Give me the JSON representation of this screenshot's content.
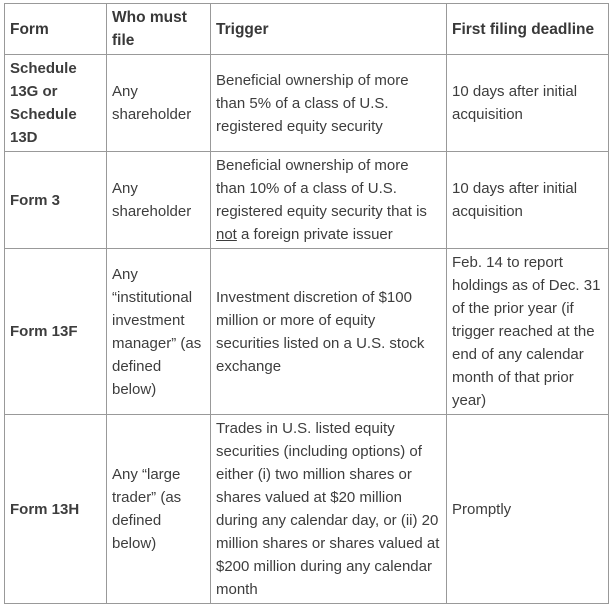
{
  "table": {
    "colors": {
      "border": "#999999",
      "text": "#3d3d3d",
      "background": "#ffffff"
    },
    "headers": {
      "form": "Form",
      "who": "Who must file",
      "trigger": "Trigger",
      "deadline": "First filing deadline"
    },
    "rows": [
      {
        "form": "Schedule 13G or Schedule 13D",
        "who": "Any shareholder",
        "trigger": "Beneficial ownership of more than 5% of a class of U.S. registered equity security",
        "deadline": "10 days after initial acquisition"
      },
      {
        "form": "Form 3",
        "who": "Any shareholder",
        "trigger_before": "Beneficial ownership of more than 10% of a class of U.S. registered equity security that is ",
        "trigger_underline": "not",
        "trigger_after": " a foreign private issuer",
        "deadline": "10 days after initial acquisition"
      },
      {
        "form": "Form 13F",
        "who": "Any “institutional investment manager” (as defined below)",
        "trigger": "Investment discretion of $100 million or more of equity securities listed on a U.S. stock exchange",
        "deadline": "Feb. 14 to report holdings as of Dec. 31 of the prior year (if trigger reached at the end of any calendar month of that prior year)"
      },
      {
        "form": "Form 13H",
        "who": "Any “large trader” (as defined below)",
        "trigger": "Trades in U.S. listed equity securities (including options) of either (i) two million shares or shares valued at $20 million during any calendar day, or (ii) 20 million shares or shares valued at $200 million during any calendar month",
        "deadline": "Promptly"
      }
    ]
  }
}
